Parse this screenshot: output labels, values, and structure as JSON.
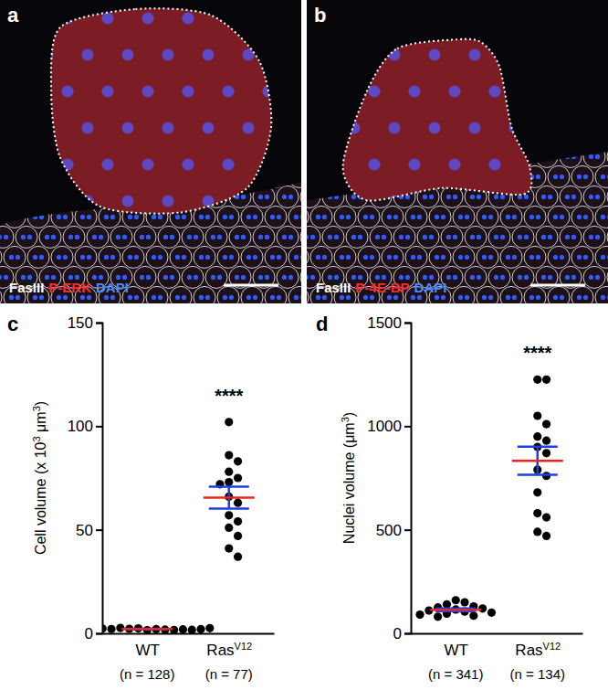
{
  "images": [
    {
      "panel": "a",
      "stains": [
        {
          "text": "FasIII",
          "color": "#ffffff"
        },
        {
          "text": "P-ERK",
          "color": "#ff2b2b"
        },
        {
          "text": "DAPI",
          "color": "#4a8cff"
        }
      ]
    },
    {
      "panel": "b",
      "stains": [
        {
          "text": "FasIII",
          "color": "#ffffff"
        },
        {
          "text": "P-4E-BP",
          "color": "#ff2b2b"
        },
        {
          "text": "DAPI",
          "color": "#4a8cff"
        }
      ]
    }
  ],
  "chart_data": [
    {
      "type": "scatter",
      "panel": "c",
      "ylabel": [
        {
          "text": "Cell volume (x 10",
          "sup": false
        },
        {
          "text": "3",
          "sup": true
        },
        {
          "text": " μm",
          "sup": false
        },
        {
          "text": "3",
          "sup": true
        },
        {
          "text": ")",
          "sup": false
        }
      ],
      "categories": [
        "WT",
        "Ras"
      ],
      "category_sup": [
        null,
        "V12"
      ],
      "n_labels": [
        "(n = 128)",
        "(n = 77)"
      ],
      "values": [
        [
          1.5,
          2.0,
          2.4,
          1.8,
          2.2,
          1.6,
          2.6,
          1.9,
          2.1,
          1.7,
          2.3,
          2.0,
          1.4,
          2.5,
          2.8
        ],
        [
          102,
          86,
          83,
          78,
          75,
          73,
          72,
          66,
          63,
          57,
          54,
          51,
          47,
          41,
          37
        ]
      ],
      "means": [
        2.1,
        65.5
      ],
      "errors": [
        0.1,
        5.3
      ],
      "color": "#000000",
      "ylim": [
        0,
        150
      ],
      "yticks": [
        0,
        50,
        100,
        150
      ],
      "annotations": [
        {
          "text": "****",
          "category": 1
        }
      ]
    },
    {
      "type": "scatter",
      "panel": "d",
      "ylabel": [
        {
          "text": "Nuclei volume (μm",
          "sup": false
        },
        {
          "text": "3",
          "sup": true
        },
        {
          "text": ")",
          "sup": false
        }
      ],
      "categories": [
        "WT",
        "Ras"
      ],
      "category_sup": [
        null,
        "V12"
      ],
      "n_labels": [
        "(n = 341)",
        "(n = 134)"
      ],
      "values": [
        [
          160,
          150,
          140,
          130,
          125,
          120,
          115,
          110,
          105,
          100,
          95,
          90,
          85,
          80
        ],
        [
          1225,
          1225,
          1050,
          1010,
          950,
          930,
          900,
          870,
          790,
          760,
          680,
          580,
          560,
          490,
          470
        ]
      ],
      "means": [
        114,
        833
      ],
      "errors": [
        6.5,
        68
      ],
      "color": "#000000",
      "ylim": [
        0,
        1500
      ],
      "yticks": [
        0,
        500,
        1000,
        1500
      ],
      "annotations": [
        {
          "text": "****",
          "category": 1
        }
      ]
    }
  ]
}
